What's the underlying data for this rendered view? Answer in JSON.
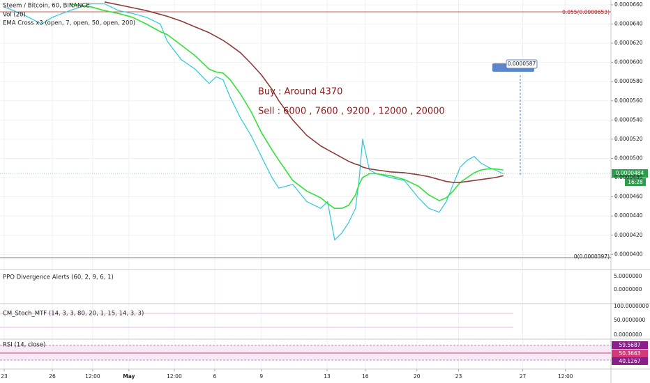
{
  "header": {
    "symbol": "Steem / Bitcoin, 60, BINANCE",
    "indicators": [
      "Vol (20)",
      "EMA Cross x3 (open, 7, open, 50, open, 200)"
    ]
  },
  "annotations": [
    "Buy : Around 4370",
    "Sell : 6000 , 7600 , 9200 , 12000 , 20000"
  ],
  "levels": {
    "top": "0.055(0.0000653)",
    "bottom": "0(0.0000397)"
  },
  "price_tags": {
    "last": "0.0000484",
    "countdown": "16:28",
    "measure": "0.0000587"
  },
  "panels": [
    {
      "title": "PPO Divergence Alerts (60, 2, 9, 6, 1)",
      "ticks": [
        "5.0000000",
        "0.0000000"
      ]
    },
    {
      "title": "CM_Stoch_MTF (14, 3, 3, 80, 20, 1, 15, 14, 3, 3)",
      "ticks": [
        "100.0000000",
        "50.0000000",
        "0.0000000"
      ]
    },
    {
      "title": "RSI (14, close)",
      "ticks": [
        "59.5687",
        "50.3663",
        "40.1267"
      ]
    }
  ],
  "chart_data": {
    "type": "line",
    "x": [
      0.22,
      1.3,
      2.61,
      3.26,
      4.35,
      5.65,
      6.52,
      7.39,
      8.26,
      9.13,
      10,
      10.43,
      11.3,
      12.17,
      13.04,
      13.48,
      13.91,
      14.35,
      15,
      15.65,
      16.3,
      16.96,
      17.39,
      18.26,
      19.13,
      20,
      20.43,
      20.87,
      21.3,
      21.74,
      22.17,
      22.39,
      22.61,
      23.04,
      23.48,
      24.35,
      25.22,
      26.09,
      26.74,
      27.39,
      27.83,
      28.26,
      28.7,
      29.13,
      29.57,
      30,
      30.43,
      30.87,
      31.39
    ],
    "series": [
      {
        "color": "#2ec7d6",
        "values": [
          6.58e-05,
          6.51e-05,
          6.4e-05,
          6.47e-05,
          6.54e-05,
          6.61e-05,
          6.61e-05,
          6.54e-05,
          6.51e-05,
          6.47e-05,
          6.4e-05,
          6.22e-05,
          6.03e-05,
          5.93e-05,
          5.78e-05,
          5.85e-05,
          5.82e-05,
          5.64e-05,
          5.42e-05,
          5.24e-05,
          5.02e-05,
          4.8e-05,
          4.69e-05,
          4.73e-05,
          4.55e-05,
          4.48e-05,
          4.55e-05,
          4.15e-05,
          4.22e-05,
          4.33e-05,
          4.48e-05,
          4.77e-05,
          5.2e-05,
          4.88e-05,
          4.84e-05,
          4.8e-05,
          4.77e-05,
          4.59e-05,
          4.48e-05,
          4.44e-05,
          4.55e-05,
          4.73e-05,
          4.91e-05,
          4.98e-05,
          5.02e-05,
          4.95e-05,
          4.91e-05,
          4.88e-05,
          4.84e-05
        ]
      },
      {
        "color": "#34e03a",
        "values": [
          null,
          null,
          null,
          null,
          6.61e-05,
          6.58e-05,
          6.54e-05,
          6.51e-05,
          6.47e-05,
          6.4e-05,
          6.32e-05,
          6.29e-05,
          6.18e-05,
          6.07e-05,
          5.93e-05,
          5.9e-05,
          5.89e-05,
          5.82e-05,
          5.67e-05,
          5.49e-05,
          5.27e-05,
          5.09e-05,
          4.98e-05,
          4.77e-05,
          4.66e-05,
          4.59e-05,
          4.53e-05,
          4.48e-05,
          4.48e-05,
          4.51e-05,
          4.62e-05,
          4.73e-05,
          4.8e-05,
          4.84e-05,
          4.84e-05,
          4.82e-05,
          4.78e-05,
          4.71e-05,
          4.62e-05,
          4.56e-05,
          4.59e-05,
          4.66e-05,
          4.75e-05,
          4.8e-05,
          4.85e-05,
          4.88e-05,
          4.89e-05,
          4.89e-05,
          4.88e-05
        ]
      },
      {
        "color": "#8e3b3b",
        "values": [
          null,
          null,
          null,
          null,
          null,
          null,
          6.63e-05,
          6.6e-05,
          6.57e-05,
          6.54e-05,
          6.5e-05,
          6.48e-05,
          6.43e-05,
          6.37e-05,
          6.31e-05,
          6.27e-05,
          6.23e-05,
          6.18e-05,
          6.1e-05,
          5.99e-05,
          5.87e-05,
          5.72e-05,
          5.6e-05,
          5.4e-05,
          5.24e-05,
          5.13e-05,
          5.09e-05,
          5.05e-05,
          5.01e-05,
          4.97e-05,
          4.94e-05,
          4.93e-05,
          4.91e-05,
          4.89e-05,
          4.88e-05,
          4.86e-05,
          4.85e-05,
          4.83e-05,
          4.81e-05,
          4.78e-05,
          4.76e-05,
          4.75e-05,
          4.75e-05,
          4.76e-05,
          4.77e-05,
          4.78e-05,
          4.79e-05,
          4.8e-05,
          4.82e-05
        ]
      }
    ],
    "xlim": [
      0,
      38.1
    ],
    "xticks": [
      {
        "value": 0.26,
        "label": "23"
      },
      {
        "value": 3.26,
        "label": "26"
      },
      {
        "value": 5.78,
        "label": "12:00"
      },
      {
        "value": 8.04,
        "label": "May"
      },
      {
        "value": 10.87,
        "label": "12:00"
      },
      {
        "value": 13.39,
        "label": "6"
      },
      {
        "value": 16.3,
        "label": "9"
      },
      {
        "value": 20.4,
        "label": "13"
      },
      {
        "value": 22.78,
        "label": "16"
      },
      {
        "value": 26,
        "label": "20"
      },
      {
        "value": 28.6,
        "label": "23"
      },
      {
        "value": 32.6,
        "label": "27"
      },
      {
        "value": 35.26,
        "label": "12:00"
      }
    ],
    "ylim": [
      3.85e-05,
      6.65e-05
    ],
    "yticks": [
      {
        "value": 6.6e-05,
        "label": "0.0000660"
      },
      {
        "value": 6.4e-05,
        "label": "0.0000640"
      },
      {
        "value": 6.2e-05,
        "label": "0.0000620"
      },
      {
        "value": 6e-05,
        "label": "0.0000600"
      },
      {
        "value": 5.8e-05,
        "label": "0.0000580"
      },
      {
        "value": 5.6e-05,
        "label": "0.0000560"
      },
      {
        "value": 5.4e-05,
        "label": "0.0000540"
      },
      {
        "value": 5.2e-05,
        "label": "0.0000520"
      },
      {
        "value": 5e-05,
        "label": "0.0000500"
      },
      {
        "value": 4.8e-05,
        "label": "0.0000480"
      },
      {
        "value": 4.6e-05,
        "label": "0.0000460"
      },
      {
        "value": 4.4e-05,
        "label": "0.0000440"
      },
      {
        "value": 4.2e-05,
        "label": "0.0000420"
      },
      {
        "value": 4e-05,
        "label": "0.0000400"
      }
    ],
    "grid": true
  }
}
